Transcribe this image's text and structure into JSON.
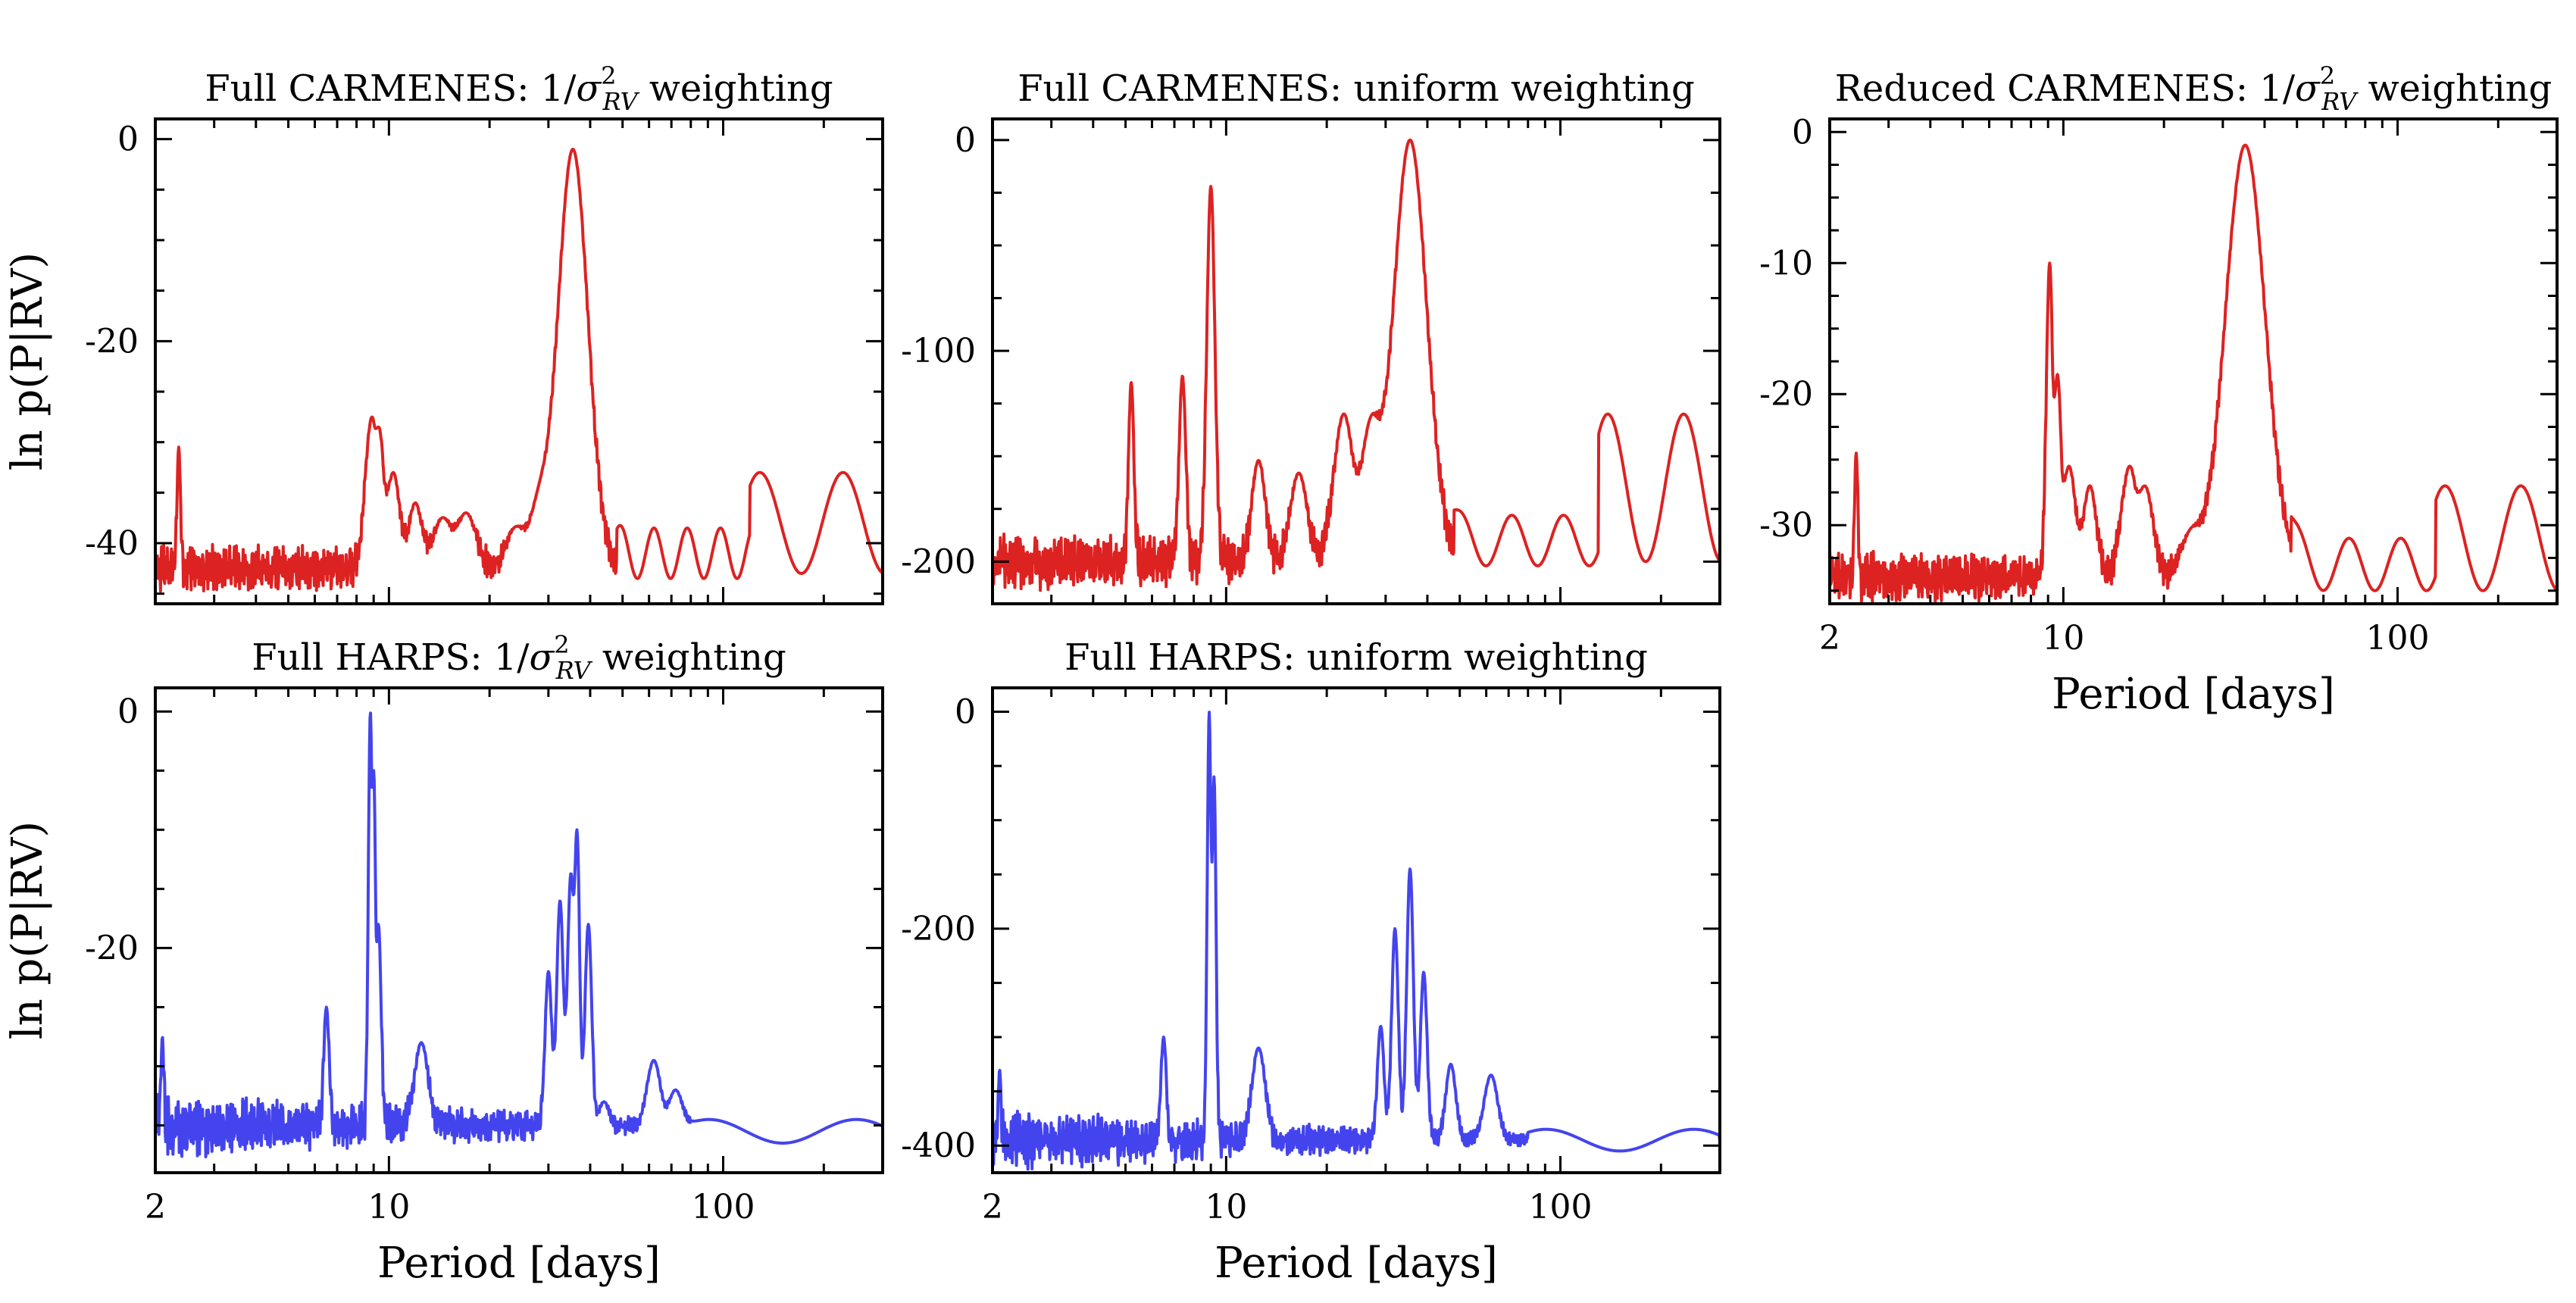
{
  "figure": {
    "xlabel": "Period [days]",
    "ylabel": "ln p(P|RV)"
  },
  "chart_data": [
    {
      "id": "p1",
      "type": "line",
      "title": "Full CARMENES: 1/σ²RV weighting",
      "title_parts": [
        "Full CARMENES: 1/",
        "σ",
        "2",
        "RV",
        " weighting"
      ],
      "xscale": "log",
      "xlim": [
        2,
        300
      ],
      "ylim": [
        -46,
        2
      ],
      "yticks": [
        0,
        -20,
        -40
      ],
      "ytick_labels": [
        "0",
        "-20",
        "-40"
      ],
      "xticks": [
        2,
        10,
        100
      ],
      "xtick_labels": [
        "2",
        "10",
        "100"
      ],
      "show_xticklabels": false,
      "show_xlabel": false,
      "show_ylabel": true,
      "color": "#dd2222",
      "profile": {
        "baseline": -42.5,
        "noise": 1.6,
        "amp_decay": 0.25,
        "seed": 11,
        "peaks": [
          [
            2.35,
            -30.5,
            0.005
          ],
          [
            8.9,
            -27.5,
            0.02
          ],
          [
            9.3,
            -28.5,
            0.015
          ],
          [
            10.3,
            -33,
            0.02
          ],
          [
            12.0,
            -36,
            0.02
          ],
          [
            14.5,
            -37.5,
            0.03
          ],
          [
            17.0,
            -37,
            0.03
          ],
          [
            24.0,
            -38.5,
            0.03
          ],
          [
            28.0,
            -37,
            0.03
          ],
          [
            35.5,
            -1,
            0.045
          ]
        ],
        "waves": [
          [
            48,
            120,
            -41,
            2.5,
            0.5
          ],
          [
            120,
            300,
            -38,
            5,
            0.1
          ]
        ]
      }
    },
    {
      "id": "p2",
      "type": "line",
      "title": "Full CARMENES: uniform weighting",
      "title_parts": [
        "Full CARMENES: uniform weighting"
      ],
      "xscale": "log",
      "xlim": [
        2,
        300
      ],
      "ylim": [
        -220,
        10
      ],
      "yticks": [
        0,
        -100,
        -200
      ],
      "ytick_labels": [
        "0",
        "-100",
        "-200"
      ],
      "xticks": [
        2,
        10,
        100
      ],
      "xtick_labels": [
        "2",
        "10",
        "100"
      ],
      "show_xticklabels": false,
      "show_xlabel": false,
      "show_ylabel": false,
      "color": "#dd2222",
      "profile": {
        "baseline": -200,
        "noise": 9,
        "amp_decay": 0.3,
        "seed": 23,
        "peaks": [
          [
            5.2,
            -115,
            0.008
          ],
          [
            7.4,
            -112,
            0.01
          ],
          [
            9.0,
            -22,
            0.012
          ],
          [
            12.5,
            -152,
            0.02
          ],
          [
            16.5,
            -158,
            0.025
          ],
          [
            22.5,
            -130,
            0.03
          ],
          [
            27.0,
            -140,
            0.03
          ],
          [
            35.5,
            0,
            0.05
          ]
        ],
        "waves": [
          [
            48,
            130,
            -190,
            12,
            0.3
          ],
          [
            130,
            300,
            -165,
            35,
            0.1
          ]
        ]
      }
    },
    {
      "id": "p3",
      "type": "line",
      "title": "Reduced CARMENES: 1/σ²RV weighting",
      "title_parts": [
        "Reduced CARMENES: 1/",
        "σ",
        "2",
        "RV",
        " weighting"
      ],
      "xscale": "log",
      "xlim": [
        2,
        300
      ],
      "ylim": [
        -36,
        1
      ],
      "yticks": [
        0,
        -10,
        -20,
        -30
      ],
      "ytick_labels": [
        "0",
        "-10",
        "-20",
        "-30"
      ],
      "xticks": [
        2,
        10,
        100
      ],
      "xtick_labels": [
        "2",
        "10",
        "100"
      ],
      "show_xticklabels": true,
      "show_xlabel": true,
      "show_ylabel": false,
      "color": "#dd2222",
      "profile": {
        "baseline": -34,
        "noise": 1.3,
        "amp_decay": 0.3,
        "seed": 37,
        "peaks": [
          [
            2.4,
            -24.5,
            0.005
          ],
          [
            9.1,
            -10,
            0.01
          ],
          [
            9.6,
            -18.5,
            0.012
          ],
          [
            10.4,
            -25.5,
            0.02
          ],
          [
            12.0,
            -27,
            0.02
          ],
          [
            15.8,
            -25.5,
            0.025
          ],
          [
            17.5,
            -27,
            0.025
          ],
          [
            24.0,
            -31,
            0.03
          ],
          [
            35.0,
            -1,
            0.06
          ]
        ],
        "waves": [
          [
            48,
            130,
            -33,
            2,
            0.3
          ],
          [
            130,
            300,
            -31,
            4,
            0.1
          ]
        ]
      }
    },
    {
      "id": "p4",
      "type": "line",
      "title": "Full HARPS: 1/σ²RV weighting",
      "title_parts": [
        "Full HARPS: 1/",
        "σ",
        "2",
        "RV",
        " weighting"
      ],
      "xscale": "log",
      "xlim": [
        2,
        300
      ],
      "ylim": [
        -39,
        2
      ],
      "yticks": [
        0,
        -20
      ],
      "ytick_labels": [
        "0",
        "-20"
      ],
      "xticks": [
        2,
        10,
        100
      ],
      "xtick_labels": [
        "2",
        "10",
        "100"
      ],
      "show_xticklabels": true,
      "show_xlabel": true,
      "show_ylabel": true,
      "color": "#4444ee",
      "profile": {
        "baseline": -35,
        "noise": 1.8,
        "amp_decay": 0.6,
        "seed": 53,
        "peaks": [
          [
            2.1,
            -27.5,
            0.004
          ],
          [
            6.5,
            -25,
            0.008
          ],
          [
            8.8,
            0,
            0.006
          ],
          [
            9.0,
            -5,
            0.006
          ],
          [
            9.3,
            -18,
            0.008
          ],
          [
            12.5,
            -28,
            0.02
          ],
          [
            30.0,
            -22,
            0.01
          ],
          [
            32.5,
            -16,
            0.01
          ],
          [
            35.0,
            -14,
            0.01
          ],
          [
            36.5,
            -10,
            0.008
          ],
          [
            39.5,
            -18,
            0.01
          ],
          [
            44.0,
            -33,
            0.015
          ],
          [
            62.0,
            -29.5,
            0.02
          ],
          [
            72.0,
            -32,
            0.02
          ]
        ],
        "waves": [
          [
            80,
            300,
            -35.5,
            1,
            0.05
          ]
        ]
      }
    },
    {
      "id": "p5",
      "type": "line",
      "title": "Full HARPS: uniform weighting",
      "title_parts": [
        "Full HARPS: uniform weighting"
      ],
      "xscale": "log",
      "xlim": [
        2,
        300
      ],
      "ylim": [
        -425,
        22
      ],
      "yticks": [
        0,
        -200,
        -400
      ],
      "ytick_labels": [
        "0",
        "-200",
        "-400"
      ],
      "xticks": [
        2,
        10,
        100
      ],
      "xtick_labels": [
        "2",
        "10",
        "100"
      ],
      "show_xticklabels": true,
      "show_xlabel": true,
      "show_ylabel": false,
      "color": "#4444ee",
      "profile": {
        "baseline": -395,
        "noise": 18,
        "amp_decay": 0.6,
        "seed": 71,
        "peaks": [
          [
            2.1,
            -330,
            0.004
          ],
          [
            6.5,
            -300,
            0.008
          ],
          [
            8.9,
            0,
            0.006
          ],
          [
            9.2,
            -60,
            0.006
          ],
          [
            12.5,
            -310,
            0.02
          ],
          [
            29.0,
            -290,
            0.01
          ],
          [
            32.0,
            -200,
            0.01
          ],
          [
            35.5,
            -145,
            0.01
          ],
          [
            39.0,
            -240,
            0.01
          ],
          [
            47.0,
            -325,
            0.015
          ],
          [
            62.0,
            -335,
            0.02
          ]
        ],
        "waves": [
          [
            80,
            300,
            -395,
            10,
            0.05
          ]
        ]
      }
    }
  ]
}
